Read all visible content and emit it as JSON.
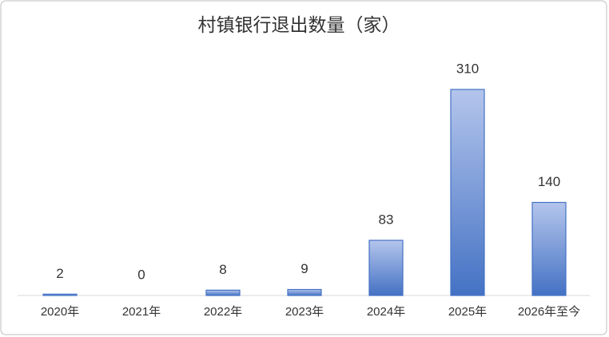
{
  "chart_data": {
    "type": "bar",
    "title": "村镇银行退出数量（家）",
    "categories": [
      "2020年",
      "2021年",
      "2022年",
      "2023年",
      "2024年",
      "2025年",
      "2026年至今"
    ],
    "values": [
      2,
      0,
      8,
      9,
      83,
      310,
      140
    ],
    "color": "#4472c4"
  }
}
